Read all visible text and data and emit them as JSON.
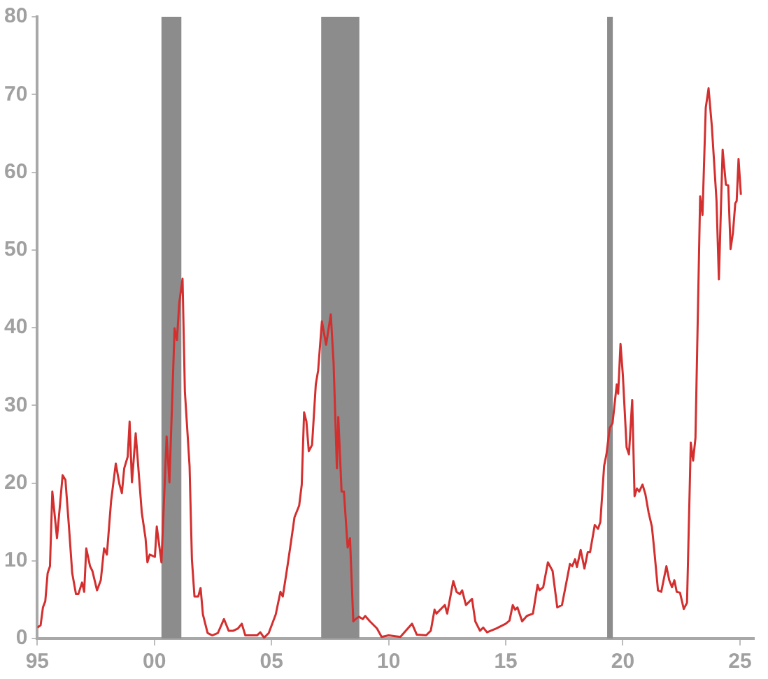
{
  "chart_data": {
    "type": "line",
    "x": [
      1995.0,
      1995.14,
      1995.24,
      1995.34,
      1995.44,
      1995.54,
      1995.64,
      1995.84,
      1996.08,
      1996.2,
      1996.35,
      1996.49,
      1996.65,
      1996.75,
      1996.91,
      1997.0,
      1997.09,
      1997.25,
      1997.35,
      1997.55,
      1997.71,
      1997.85,
      1997.97,
      1998.15,
      1998.35,
      1998.51,
      1998.61,
      1998.71,
      1998.86,
      1998.94,
      1999.04,
      1999.2,
      1999.46,
      1999.62,
      1999.7,
      1999.8,
      2000.02,
      2000.1,
      2000.3,
      2000.52,
      2000.64,
      2000.86,
      2000.96,
      2001.06,
      2001.2,
      2001.3,
      2001.5,
      2001.6,
      2001.71,
      2001.87,
      2001.97,
      2002.07,
      2002.27,
      2002.47,
      2002.71,
      2002.97,
      2003.17,
      2003.37,
      2003.57,
      2003.73,
      2003.88,
      2004.38,
      2004.52,
      2004.68,
      2004.88,
      2005.18,
      2005.38,
      2005.48,
      2005.68,
      2005.84,
      2005.98,
      2006.18,
      2006.29,
      2006.39,
      2006.49,
      2006.59,
      2006.73,
      2006.89,
      2006.99,
      2007.15,
      2007.33,
      2007.53,
      2007.65,
      2007.79,
      2007.85,
      2007.99,
      2008.09,
      2008.25,
      2008.35,
      2008.49,
      2008.59,
      2008.73,
      2008.9,
      2009.0,
      2009.2,
      2009.5,
      2009.7,
      2010.0,
      2010.5,
      2011.0,
      2011.2,
      2011.6,
      2011.8,
      2011.96,
      2012.04,
      2012.3,
      2012.4,
      2012.5,
      2012.76,
      2012.9,
      2013.04,
      2013.14,
      2013.3,
      2013.56,
      2013.7,
      2013.9,
      2014.04,
      2014.2,
      2014.6,
      2015.0,
      2015.16,
      2015.3,
      2015.4,
      2015.5,
      2015.7,
      2015.9,
      2016.16,
      2016.36,
      2016.44,
      2016.6,
      2016.8,
      2017.0,
      2017.2,
      2017.4,
      2017.6,
      2017.74,
      2017.84,
      2017.96,
      2018.04,
      2018.2,
      2018.36,
      2018.5,
      2018.6,
      2018.8,
      2018.94,
      2019.04,
      2019.2,
      2019.3,
      2019.44,
      2019.56,
      2019.74,
      2019.8,
      2019.9,
      2020.0,
      2020.16,
      2020.26,
      2020.4,
      2020.5,
      2020.6,
      2020.7,
      2020.84,
      2020.96,
      2021.1,
      2021.24,
      2021.34,
      2021.5,
      2021.64,
      2021.86,
      2021.98,
      2022.1,
      2022.2,
      2022.3,
      2022.44,
      2022.6,
      2022.74,
      2022.9,
      2023.0,
      2023.1,
      2023.3,
      2023.4,
      2023.54,
      2023.66,
      2023.8,
      2024.0,
      2024.1,
      2024.26,
      2024.4,
      2024.5,
      2024.6,
      2024.7,
      2024.8,
      2024.86,
      2024.94,
      2025.04
    ],
    "series": [
      {
        "color": "#d32f2f",
        "values": [
          1.4,
          1.7,
          4.0,
          4.8,
          8.4,
          9.3,
          18.9,
          12.9,
          21.0,
          20.4,
          14.4,
          8.4,
          5.7,
          5.7,
          7.2,
          6.0,
          11.6,
          9.3,
          8.7,
          6.2,
          7.5,
          11.6,
          10.8,
          17.7,
          22.5,
          19.8,
          18.7,
          21.9,
          23.4,
          27.9,
          20.1,
          26.4,
          16.2,
          12.9,
          9.8,
          10.8,
          10.5,
          14.4,
          9.8,
          26.0,
          20.1,
          39.9,
          38.4,
          43.2,
          46.3,
          31.8,
          22.2,
          10.2,
          5.4,
          5.4,
          6.5,
          3.1,
          0.7,
          0.4,
          0.7,
          2.5,
          1.0,
          1.0,
          1.3,
          1.9,
          0.4,
          0.4,
          0.8,
          0.1,
          0.7,
          3.1,
          6.0,
          5.4,
          9.3,
          12.6,
          15.6,
          17.1,
          19.8,
          29.1,
          27.9,
          24.1,
          24.9,
          32.7,
          34.5,
          40.8,
          37.8,
          41.7,
          35.4,
          21.9,
          28.5,
          18.9,
          18.9,
          11.7,
          12.9,
          2.2,
          2.5,
          2.8,
          2.5,
          2.9,
          2.2,
          1.3,
          0.2,
          0.4,
          0.2,
          1.9,
          0.5,
          0.4,
          1.0,
          3.7,
          3.2,
          4.0,
          4.3,
          3.2,
          7.4,
          6.0,
          5.7,
          6.2,
          4.3,
          5.1,
          2.2,
          1.0,
          1.4,
          0.8,
          1.3,
          1.9,
          2.3,
          4.3,
          3.7,
          4.0,
          2.2,
          2.9,
          3.2,
          6.9,
          6.2,
          6.6,
          9.8,
          8.7,
          4.0,
          4.3,
          7.4,
          9.6,
          9.3,
          10.2,
          9.2,
          11.4,
          9.0,
          11.1,
          11.1,
          14.6,
          14.1,
          15.0,
          22.2,
          23.7,
          27.1,
          27.7,
          32.7,
          31.5,
          37.9,
          33.9,
          24.6,
          23.7,
          30.7,
          18.3,
          19.3,
          18.9,
          19.8,
          18.6,
          16.2,
          14.4,
          11.4,
          6.2,
          6.0,
          9.3,
          7.5,
          6.6,
          7.5,
          6.0,
          5.9,
          3.8,
          4.6,
          25.2,
          22.9,
          25.8,
          56.9,
          54.5,
          68.3,
          70.8,
          65.9,
          56.3,
          46.2,
          62.9,
          58.4,
          58.3,
          50.1,
          52.2,
          56.0,
          56.3,
          61.7,
          57.1
        ]
      }
    ],
    "xlim": [
      1995,
      2025.6
    ],
    "xticks": [
      {
        "value": 1995,
        "label": "95"
      },
      {
        "value": 2000,
        "label": "00"
      },
      {
        "value": 2005,
        "label": "05"
      },
      {
        "value": 2010,
        "label": "10"
      },
      {
        "value": 2015,
        "label": "15"
      },
      {
        "value": 2020,
        "label": "20"
      },
      {
        "value": 2025,
        "label": "25"
      }
    ],
    "ylim": [
      0,
      80
    ],
    "yticks": [
      0,
      10,
      20,
      30,
      40,
      50,
      60,
      70,
      80
    ],
    "bands": [
      {
        "axis": "x",
        "from": 2000.3,
        "to": 2001.15,
        "color": "#8c8c8c"
      },
      {
        "axis": "x",
        "from": 2007.12,
        "to": 2008.75,
        "color": "#8c8c8c"
      },
      {
        "axis": "x",
        "from": 2019.33,
        "to": 2019.57,
        "color": "#8c8c8c"
      }
    ],
    "grid": false,
    "legend": false,
    "marker": "none",
    "line_style": "solid"
  }
}
